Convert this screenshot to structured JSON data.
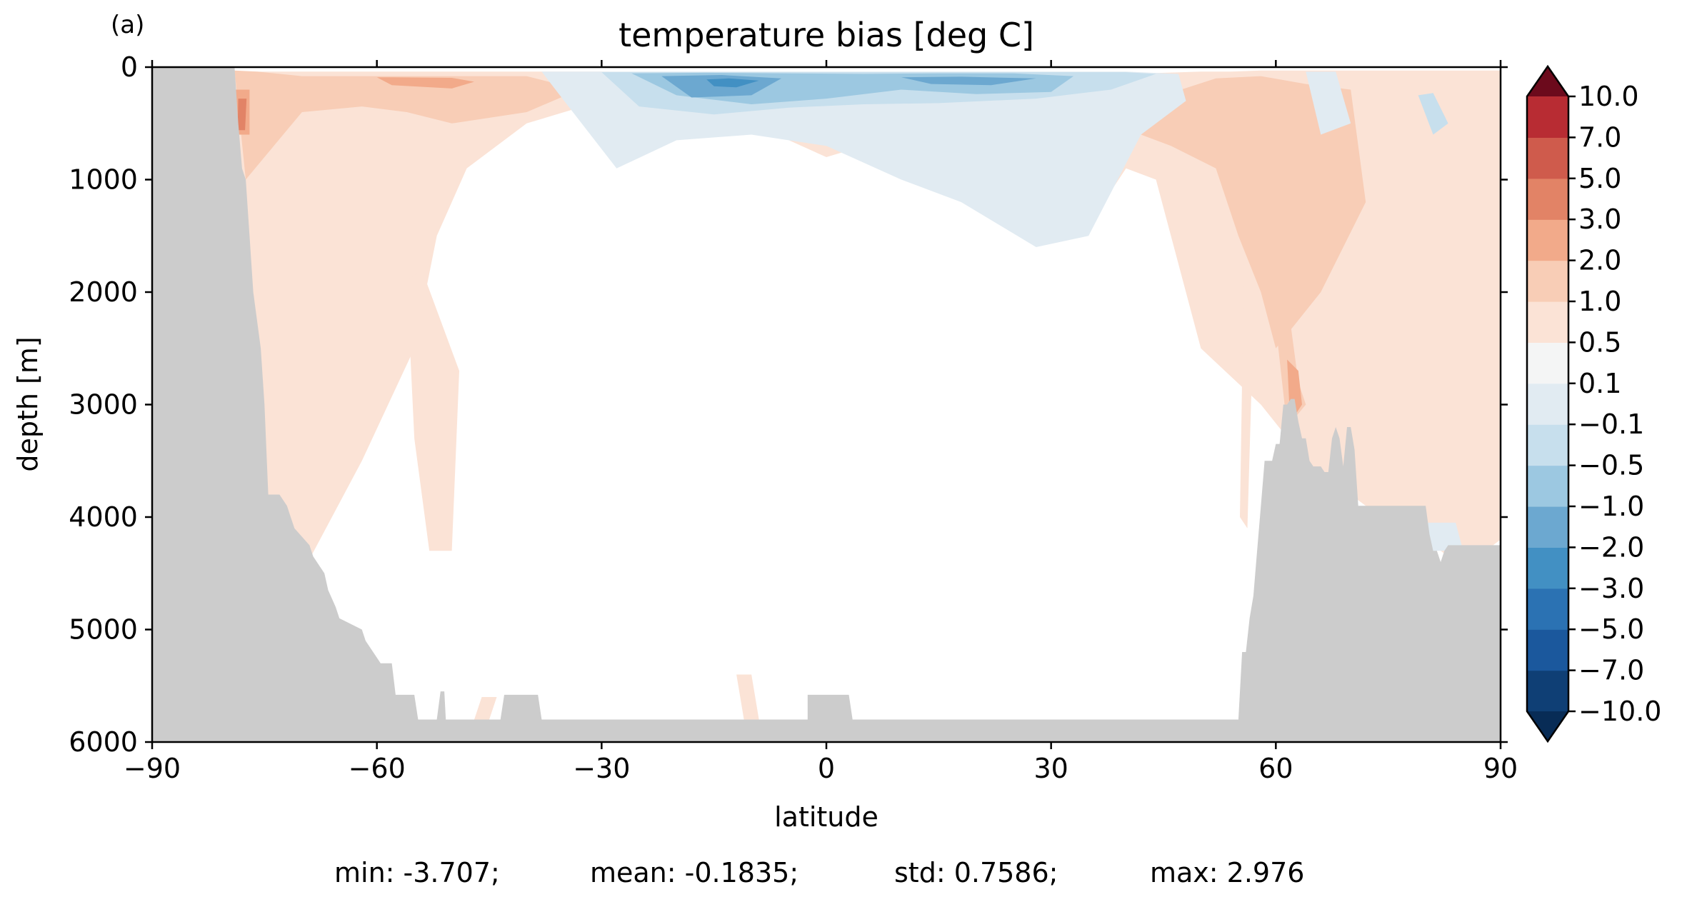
{
  "chart_data": {
    "type": "heatmap",
    "panel_label": "(a)",
    "title": "temperature bias [deg C]",
    "xlabel": "latitude",
    "ylabel": "depth [m]",
    "xlim": [
      -90,
      90
    ],
    "ylim": [
      6000,
      0
    ],
    "xticks": [
      -90,
      -60,
      -30,
      0,
      30,
      60,
      90
    ],
    "xtick_labels": [
      "−90",
      "−60",
      "−30",
      "0",
      "30",
      "60",
      "90"
    ],
    "yticks": [
      0,
      1000,
      2000,
      3000,
      4000,
      5000,
      6000
    ],
    "ytick_labels": [
      "0",
      "1000",
      "2000",
      "3000",
      "4000",
      "5000",
      "6000"
    ],
    "colorbar": {
      "extend": "both",
      "levels": [
        -10,
        -7,
        -5,
        -3,
        -2,
        -1,
        -0.5,
        -0.1,
        0.1,
        0.5,
        1,
        2,
        3,
        5,
        7,
        10
      ],
      "tick_labels": [
        "−10.0",
        "−7.0",
        "−5.0",
        "−3.0",
        "−2.0",
        "−1.0",
        "−0.5",
        "−0.1",
        "0.1",
        "0.5",
        "1.0",
        "2.0",
        "3.0",
        "5.0",
        "7.0",
        "10.0"
      ],
      "colors": [
        "#0f3f75",
        "#1b589d",
        "#2b72b3",
        "#4290c3",
        "#6ca8d0",
        "#9cc8e1",
        "#c7dfed",
        "#e1ebf2",
        "#f4f5f5",
        "#fbe3d6",
        "#f8cdb6",
        "#f2aa8a",
        "#e28366",
        "#cf5b4c",
        "#b82c33",
        "#96101f"
      ],
      "under_color": "#082c56",
      "over_color": "#6c0a1c"
    },
    "land_color": "#cccccc",
    "bathymetry": {
      "latitude": [
        -90,
        -79,
        -78.5,
        -78,
        -77.5,
        -77,
        -76.5,
        -75.5,
        -75,
        -74.5,
        -73,
        -72,
        -71.5,
        -71,
        -69,
        -68.5,
        -67,
        -66.5,
        -65.5,
        -65,
        -62,
        -61.5,
        -60,
        -59.5,
        -58,
        -57.5,
        -55,
        -54.5,
        -52,
        -51.5,
        -51,
        -50.8,
        -50,
        -49.5,
        -43.5,
        -43,
        -38.5,
        -38,
        0.5,
        -3,
        -2.5,
        -2.5,
        -2,
        2.5,
        3,
        3.5,
        4,
        4.5,
        5,
        55,
        55.5,
        56,
        56.5,
        57,
        57.5,
        58,
        58.5,
        59,
        59.5,
        60,
        60.5,
        61,
        61.5,
        62,
        62.5,
        63,
        63.5,
        64,
        64.5,
        65,
        66,
        66.5,
        67,
        67.5,
        68,
        68.5,
        69,
        69.5,
        70,
        70.5,
        71,
        71.5,
        72,
        72.5,
        73,
        80,
        80.5,
        81,
        81.5,
        82,
        82.5,
        83,
        83.5,
        84,
        90
      ],
      "depth": [
        0,
        0,
        500,
        900,
        1000,
        1500,
        2000,
        2500,
        3000,
        3800,
        3800,
        3900,
        4000,
        4100,
        4250,
        4350,
        4500,
        4650,
        4800,
        4900,
        5000,
        5100,
        5250,
        5300,
        5300,
        5580,
        5580,
        5800,
        5800,
        5550,
        5550,
        5800,
        5800,
        5800,
        5800,
        5580,
        5580,
        5800,
        5800,
        5800,
        5800,
        5580,
        5580,
        5580,
        5580,
        5800,
        5800,
        5800,
        5800,
        5800,
        5200,
        5200,
        4900,
        4700,
        4300,
        3900,
        3500,
        3500,
        3500,
        3350,
        3350,
        3000,
        3000,
        2950,
        2950,
        3150,
        3300,
        3300,
        3500,
        3550,
        3550,
        3600,
        3600,
        3300,
        3200,
        3300,
        3550,
        3200,
        3200,
        3400,
        3900,
        3900,
        3900,
        3900,
        3900,
        3900,
        4150,
        4300,
        4300,
        4400,
        4300,
        4250,
        4250,
        4250,
        4250
      ]
    },
    "fields": [
      {
        "cls": 9,
        "lat": [
          -82,
          -76,
          -62,
          -40,
          -30,
          -20,
          -10,
          10,
          20,
          30,
          40,
          50,
          54,
          58,
          62,
          90,
          90,
          88,
          84,
          80,
          72,
          64,
          58,
          50,
          44,
          40,
          36,
          30,
          20,
          10,
          0,
          -10,
          -20,
          -30,
          -40,
          -48,
          -52,
          -55,
          -62,
          -70,
          -75,
          -78
        ],
        "depth": [
          30,
          40,
          40,
          40,
          40,
          50,
          50,
          50,
          50,
          50,
          60,
          40,
          40,
          30,
          30,
          30,
          4200,
          4300,
          4400,
          4200,
          3900,
          3500,
          3000,
          2500,
          1000,
          900,
          1300,
          1250,
          900,
          600,
          800,
          500,
          400,
          300,
          500,
          900,
          1500,
          2500,
          3500,
          4500,
          5300,
          4200
        ]
      },
      {
        "cls": 9,
        "lat": [
          -56,
          -54,
          -49,
          -50,
          -53,
          -55
        ],
        "depth": [
          1900,
          1800,
          2700,
          4300,
          4300,
          3300
        ]
      },
      {
        "cls": 9,
        "lat": [
          -46,
          -44,
          -45,
          -47
        ],
        "depth": [
          5600,
          5600,
          5800,
          5800
        ]
      },
      {
        "cls": 9,
        "lat": [
          -12,
          -10,
          -9,
          -11
        ],
        "depth": [
          5400,
          5400,
          5800,
          5800
        ]
      },
      {
        "cls": 9,
        "lat": [
          55.8,
          57.3,
          56.2,
          55.2
        ],
        "depth": [
          1500,
          1600,
          4100,
          4000
        ]
      },
      {
        "cls": 10,
        "lat": [
          -79,
          -76,
          -70,
          -60,
          -50,
          -40,
          -33,
          -40,
          -50,
          -56,
          -62,
          -70,
          -75,
          -77.5
        ],
        "depth": [
          30,
          40,
          80,
          80,
          80,
          80,
          200,
          400,
          500,
          400,
          350,
          400,
          800,
          1000
        ]
      },
      {
        "cls": 10,
        "lat": [
          40,
          45,
          52,
          58,
          64,
          70,
          72,
          66,
          60,
          58,
          55,
          52,
          46,
          42
        ],
        "depth": [
          300,
          250,
          100,
          80,
          150,
          200,
          1200,
          2000,
          2500,
          2000,
          1500,
          900,
          700,
          600
        ]
      },
      {
        "cls": 10,
        "lat": [
          60,
          62,
          63,
          64,
          61.5
        ],
        "depth": [
          2300,
          2300,
          2800,
          3000,
          3200
        ]
      },
      {
        "cls": 11,
        "lat": [
          -79,
          -77,
          -77,
          -79
        ],
        "depth": [
          200,
          200,
          600,
          600
        ]
      },
      {
        "cls": 11,
        "lat": [
          -60,
          -58,
          -50,
          -47,
          -50,
          -58
        ],
        "depth": [
          90,
          90,
          95,
          130,
          190,
          160
        ]
      },
      {
        "cls": 11,
        "lat": [
          61.5,
          63,
          63.5,
          62.5,
          61.8
        ],
        "depth": [
          2600,
          2700,
          3000,
          3100,
          3000
        ]
      },
      {
        "cls": 12,
        "lat": [
          -78.5,
          -77.4,
          -77.6,
          -78.6
        ],
        "depth": [
          280,
          280,
          560,
          560
        ]
      },
      {
        "cls": 7,
        "lat": [
          -38,
          -25,
          -10,
          5,
          20,
          30,
          40,
          47,
          48,
          42,
          35,
          28,
          18,
          10,
          0,
          -10,
          -20,
          -28,
          -35
        ],
        "depth": [
          40,
          40,
          40,
          40,
          40,
          40,
          40,
          60,
          300,
          600,
          1500,
          1600,
          1200,
          1000,
          700,
          600,
          650,
          900,
          300
        ]
      },
      {
        "cls": 7,
        "lat": [
          64,
          68,
          70,
          66
        ],
        "depth": [
          40,
          40,
          500,
          600
        ]
      },
      {
        "cls": 7,
        "lat": [
          79,
          84,
          85,
          80
        ],
        "depth": [
          4050,
          4050,
          4300,
          4300
        ]
      },
      {
        "cls": 6,
        "lat": [
          -30,
          -20,
          -10,
          5,
          20,
          30,
          40,
          44,
          38,
          28,
          15,
          5,
          -5,
          -15,
          -25
        ],
        "depth": [
          45,
          45,
          45,
          45,
          45,
          45,
          45,
          60,
          200,
          280,
          320,
          330,
          360,
          420,
          350
        ]
      },
      {
        "cls": 6,
        "lat": [
          79,
          81,
          83,
          81
        ],
        "depth": [
          250,
          230,
          500,
          600
        ]
      },
      {
        "cls": 5,
        "lat": [
          -26,
          -16,
          -5,
          5,
          15,
          25,
          33,
          30,
          20,
          10,
          0,
          -10,
          -20
        ],
        "depth": [
          55,
          50,
          55,
          60,
          55,
          55,
          80,
          220,
          240,
          200,
          280,
          330,
          250
        ]
      },
      {
        "cls": 4,
        "lat": [
          -22,
          -14,
          -6,
          -10,
          -18
        ],
        "depth": [
          80,
          70,
          100,
          250,
          270
        ]
      },
      {
        "cls": 4,
        "lat": [
          10,
          18,
          28,
          22,
          14
        ],
        "depth": [
          90,
          85,
          100,
          160,
          150
        ]
      },
      {
        "cls": 3,
        "lat": [
          -16,
          -13,
          -9,
          -12,
          -15
        ],
        "depth": [
          110,
          100,
          120,
          180,
          170
        ]
      }
    ]
  },
  "stats": {
    "min": "min: -3.707;",
    "mean": "mean: -0.1835;",
    "std": "std: 0.7586;",
    "max": "max: 2.976"
  }
}
